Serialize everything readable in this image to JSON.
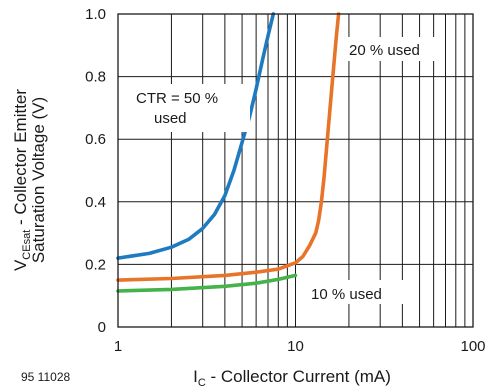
{
  "chart_data": {
    "type": "line",
    "figure_id": "95 11028",
    "xscale": "log",
    "xlim": [
      1,
      100
    ],
    "ylim": [
      0,
      1.0
    ],
    "grid": true,
    "xlabel": {
      "main": "I",
      "sub": "C",
      "rest": " - Collector Current (mA)"
    },
    "ylabel": {
      "line1": {
        "main": "V",
        "sub": "CEsat",
        "rest": " - Collector Emitter"
      },
      "line2": "Saturation Voltage (V)"
    },
    "x_ticks": [
      {
        "value": 1,
        "label": "1"
      },
      {
        "value": 10,
        "label": "10"
      },
      {
        "value": 100,
        "label": "100"
      }
    ],
    "y_ticks": [
      {
        "value": 0,
        "label": "0"
      },
      {
        "value": 0.2,
        "label": "0.2"
      },
      {
        "value": 0.4,
        "label": "0.4"
      },
      {
        "value": 0.6,
        "label": "0.6"
      },
      {
        "value": 0.8,
        "label": "0.8"
      },
      {
        "value": 1.0,
        "label": "1.0"
      }
    ],
    "series": [
      {
        "label_lines": [
          "CTR = 50 %",
          "used"
        ],
        "color": "#1f7bc0",
        "x": [
          1.0,
          1.5,
          2.0,
          2.5,
          3.0,
          3.5,
          4.0,
          4.5,
          5.0,
          5.5,
          6.0,
          6.5,
          7.0,
          7.5
        ],
        "y": [
          0.22,
          0.235,
          0.255,
          0.28,
          0.315,
          0.36,
          0.42,
          0.5,
          0.59,
          0.67,
          0.76,
          0.85,
          0.93,
          1.0
        ]
      },
      {
        "label_lines": [
          "20 % used"
        ],
        "color": "#e8742a",
        "x": [
          1.0,
          2.0,
          4.0,
          6.0,
          8.0,
          10.0,
          11.0,
          12.0,
          13.0,
          13.5,
          14.0,
          14.5,
          15.0,
          16.0,
          17.0,
          17.5
        ],
        "y": [
          0.15,
          0.155,
          0.165,
          0.175,
          0.185,
          0.205,
          0.225,
          0.26,
          0.3,
          0.34,
          0.4,
          0.48,
          0.58,
          0.76,
          0.93,
          1.0
        ]
      },
      {
        "label_lines": [
          "10 % used"
        ],
        "color": "#45b34a",
        "x": [
          1.0,
          2.0,
          4.0,
          6.0,
          8.0,
          10.0
        ],
        "y": [
          0.115,
          0.12,
          0.13,
          0.14,
          0.152,
          0.165
        ]
      }
    ]
  }
}
